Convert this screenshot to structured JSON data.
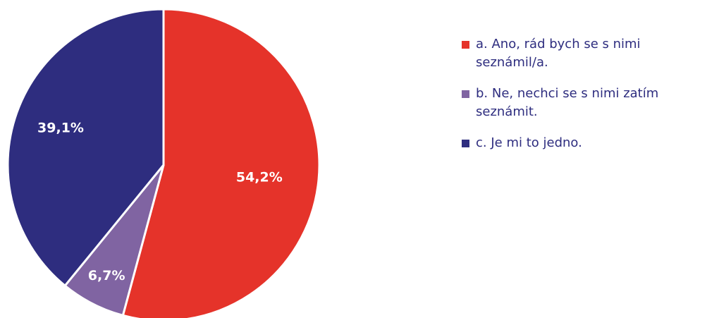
{
  "chart_data": {
    "type": "pie",
    "categories": [
      "a. Ano, rád bych se s nimi seznámil/a.",
      "b. Ne, nechci se s nimi zatím seznámit.",
      "c. Je mi to jedno."
    ],
    "values": [
      54.2,
      6.7,
      39.1
    ],
    "value_labels": [
      "54,2%",
      "6,7%",
      "39,1%"
    ],
    "colors": [
      "#e5332a",
      "#8064a2",
      "#2e2d7f"
    ],
    "legend": "right"
  }
}
